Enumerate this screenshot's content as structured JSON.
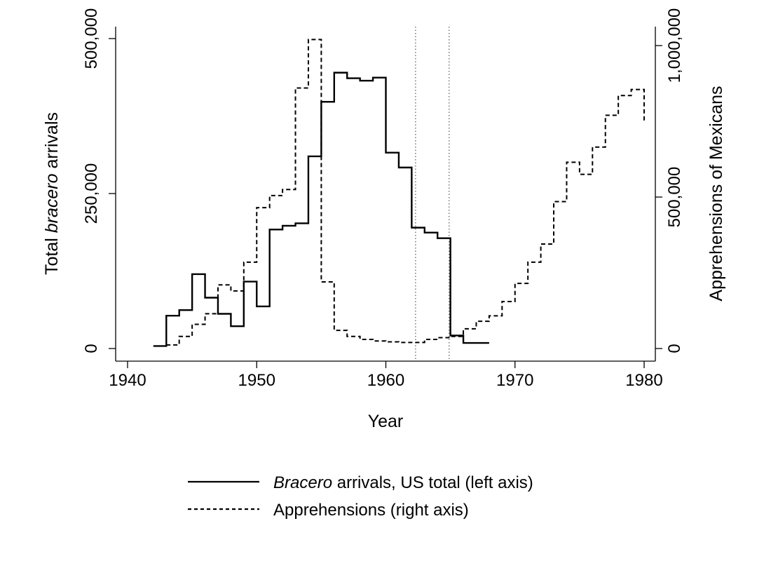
{
  "chart_data": {
    "type": "line",
    "xlabel": "Year",
    "ylabel_left": {
      "prefix": "Total ",
      "italic": "bracero",
      "suffix": " arrivals"
    },
    "ylabel_right": "Apprehensions of Mexicans",
    "xlim": [
      1940,
      1980
    ],
    "ylim_left": [
      0,
      500000
    ],
    "ylim_right": [
      0,
      1000000
    ],
    "x_ticks": [
      "1940",
      "1950",
      "1960",
      "1970",
      "1980"
    ],
    "y_ticks_left": [
      "0",
      "250,000",
      "500,000"
    ],
    "y_ticks_right": [
      "0",
      "500,000",
      "1,000,000"
    ],
    "vlines": [
      1962.3,
      1964.9
    ],
    "legend_position": "bottom",
    "series": [
      {
        "id": "bracero",
        "legend": {
          "italic": "Bracero",
          "suffix": " arrivals, US total (left axis)"
        },
        "axis": "left",
        "style": "solid",
        "x": [
          1942,
          1943,
          1944,
          1945,
          1946,
          1947,
          1948,
          1949,
          1950,
          1951,
          1952,
          1953,
          1954,
          1955,
          1956,
          1957,
          1958,
          1959,
          1960,
          1961,
          1962,
          1963,
          1964,
          1965,
          1966,
          1967
        ],
        "values": [
          4000,
          53000,
          62000,
          120000,
          82000,
          56000,
          36000,
          108000,
          68000,
          192000,
          198000,
          202000,
          310000,
          398000,
          445000,
          436000,
          432000,
          437000,
          316000,
          292000,
          195000,
          187000,
          178000,
          21000,
          9000,
          9000
        ]
      },
      {
        "id": "apprehensions",
        "legend": {
          "text": "Apprehensions (right axis)"
        },
        "axis": "right",
        "style": "dashed",
        "x": [
          1942,
          1943,
          1944,
          1945,
          1946,
          1947,
          1948,
          1949,
          1950,
          1951,
          1952,
          1953,
          1954,
          1955,
          1956,
          1957,
          1958,
          1959,
          1960,
          1961,
          1962,
          1963,
          1964,
          1965,
          1966,
          1967,
          1968,
          1969,
          1970,
          1971,
          1972,
          1973,
          1974,
          1975,
          1976,
          1977,
          1978,
          1979,
          1980
        ],
        "values": [
          8000,
          12000,
          40000,
          80000,
          115000,
          210000,
          190000,
          285000,
          465000,
          505000,
          525000,
          860000,
          1020000,
          220000,
          60000,
          40000,
          30000,
          25000,
          22000,
          20000,
          20000,
          30000,
          36000,
          40000,
          65000,
          90000,
          108000,
          155000,
          215000,
          285000,
          345000,
          485000,
          615000,
          575000,
          665000,
          770000,
          835000,
          855000,
          745000
        ]
      }
    ]
  }
}
